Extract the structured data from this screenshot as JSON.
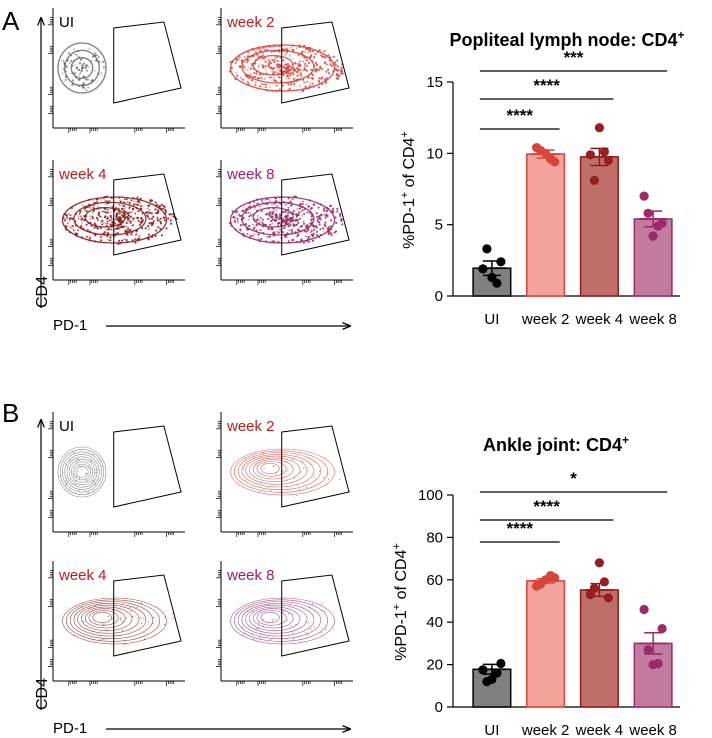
{
  "colors": {
    "ui": "#808080",
    "ui_dot": "#000000",
    "week2": "#f2a39a",
    "week2_edge": "#d9443a",
    "week2_dot": "#d9443a",
    "week4": "#bf6e68",
    "week4_edge": "#8e1c1c",
    "week4_dot": "#981e1e",
    "week8": "#c27aa0",
    "week8_edge": "#9b2a66",
    "week8_dot": "#9b2a66",
    "label_red": "#c01b1b",
    "label_purple": "#a01e6a",
    "axis": "#000000"
  },
  "panels": [
    {
      "letter": "A",
      "flow": {
        "y_axis_label": "CD4",
        "x_axis_label": "PD-1",
        "plots": [
          {
            "label": "UI",
            "series": "ui",
            "density": "dense",
            "label_color": "axis"
          },
          {
            "label": "week 2",
            "series": "week2",
            "density": "dense",
            "label_color": "label_red"
          },
          {
            "label": "week 4",
            "series": "week4",
            "density": "dense",
            "label_color": "label_red"
          },
          {
            "label": "week 8",
            "series": "week8",
            "density": "dense",
            "label_color": "label_purple"
          }
        ]
      },
      "chart_data": {
        "type": "bar",
        "title": "Popliteal lymph node: CD4",
        "title_sup": "+",
        "ylabel_parts": [
          "%PD-1",
          "+",
          " of CD4",
          "+"
        ],
        "xlabel": "",
        "ylim": [
          0,
          15
        ],
        "yticks": [
          0,
          5,
          10,
          15
        ],
        "categories": [
          "UI",
          "week 2",
          "week 4",
          "week 8"
        ],
        "series_keys": [
          "ui",
          "week2",
          "week4",
          "week8"
        ],
        "values": [
          1.95,
          9.95,
          9.75,
          5.4
        ],
        "sem": [
          0.5,
          0.28,
          0.6,
          0.55
        ],
        "points": [
          [
            1.3,
            1.9,
            2.4,
            3.3,
            0.9
          ],
          [
            10.0,
            10.4,
            9.4,
            10.2,
            9.6
          ],
          [
            11.8,
            9.9,
            9.5,
            8.1,
            10.1
          ],
          [
            4.2,
            7.0,
            5.1,
            5.8,
            4.9
          ]
        ],
        "significance": [
          {
            "from": 0,
            "to": 1,
            "label": "****"
          },
          {
            "from": 0,
            "to": 2,
            "label": "****"
          },
          {
            "from": 0,
            "to": 3,
            "label": "***"
          }
        ]
      }
    },
    {
      "letter": "B",
      "flow": {
        "y_axis_label": "CD4",
        "x_axis_label": "PD-1",
        "plots": [
          {
            "label": "UI",
            "series": "ui",
            "density": "sparse",
            "label_color": "axis"
          },
          {
            "label": "week 2",
            "series": "week2",
            "density": "sparse",
            "label_color": "label_red"
          },
          {
            "label": "week 4",
            "series": "week4",
            "density": "sparse",
            "label_color": "label_red"
          },
          {
            "label": "week 8",
            "series": "week8",
            "density": "sparse",
            "label_color": "label_purple"
          }
        ]
      },
      "chart_data": {
        "type": "bar",
        "title": "Ankle joint: CD4",
        "title_sup": "+",
        "ylabel_parts": [
          "%PD-1",
          "+",
          " of CD4",
          "+"
        ],
        "xlabel": "",
        "ylim": [
          0,
          100
        ],
        "yticks": [
          0,
          20,
          40,
          60,
          80,
          100
        ],
        "categories": [
          "UI",
          "week 2",
          "week 4",
          "week 8"
        ],
        "series_keys": [
          "ui",
          "week2",
          "week4",
          "week8"
        ],
        "values": [
          17.8,
          59.5,
          55.2,
          30.0
        ],
        "sem": [
          2.3,
          1.0,
          3.0,
          5.0
        ],
        "points": [
          [
            13.0,
            17.5,
            20.5,
            12.0,
            16.0
          ],
          [
            60.0,
            57.0,
            61.0,
            58.0,
            62.0
          ],
          [
            68.0,
            53.0,
            51.5,
            56.0,
            59.0
          ],
          [
            20.0,
            46.0,
            37.0,
            27.0,
            20.5
          ]
        ],
        "significance": [
          {
            "from": 0,
            "to": 1,
            "label": "****"
          },
          {
            "from": 0,
            "to": 2,
            "label": "****"
          },
          {
            "from": 0,
            "to": 3,
            "label": "*"
          }
        ]
      }
    }
  ]
}
